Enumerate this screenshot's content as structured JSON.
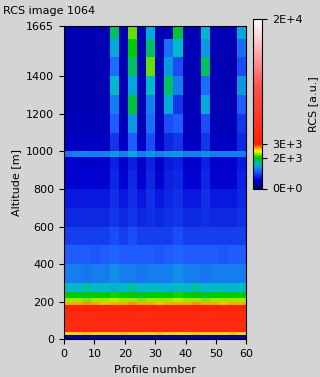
{
  "chart_data": {
    "type": "heatmap",
    "title": "RCS image 1064",
    "x_label": "Profile number",
    "y_label": "Altitude [m]",
    "x_edges": [
      0,
      3,
      6,
      9,
      12,
      15,
      18,
      21,
      24,
      27,
      30,
      33,
      36,
      39,
      42,
      45,
      48,
      51,
      54,
      57,
      60
    ],
    "y_edges": [
      0,
      25,
      40,
      50,
      100,
      150,
      180,
      200,
      220,
      250,
      300,
      400,
      500,
      600,
      700,
      800,
      900,
      970,
      1000,
      1100,
      1200,
      1300,
      1400,
      1500,
      1600,
      1665
    ],
    "cells": [
      [
        300,
        300,
        300,
        300,
        300,
        300,
        300,
        300,
        300,
        300,
        300,
        300,
        300,
        300,
        300,
        300,
        300,
        300,
        300,
        300
      ],
      [
        2600,
        2600,
        2650,
        2600,
        2600,
        2600,
        2650,
        2600,
        2600,
        2600,
        2650,
        2600,
        2600,
        2600,
        2650,
        2600,
        2600,
        2600,
        2650,
        2600
      ],
      [
        4500,
        4500,
        4400,
        4500,
        4500,
        4600,
        4500,
        4500,
        4400,
        4500,
        4500,
        4500,
        4600,
        4500,
        4500,
        4400,
        4500,
        4500,
        4500,
        4500
      ],
      [
        5000,
        5100,
        5000,
        5000,
        4900,
        5000,
        5100,
        5000,
        5000,
        5000,
        4900,
        5000,
        5000,
        5100,
        5000,
        5000,
        5000,
        4900,
        5000,
        5000
      ],
      [
        4500,
        4500,
        4600,
        4500,
        4500,
        4400,
        4500,
        4500,
        4600,
        4500,
        4500,
        4500,
        4400,
        4500,
        4500,
        4600,
        4500,
        4500,
        4500,
        4400
      ],
      [
        3500,
        3500,
        3400,
        3500,
        3600,
        3500,
        3500,
        3400,
        3500,
        3500,
        3600,
        3500,
        3500,
        3500,
        3400,
        3500,
        3500,
        3600,
        3500,
        3500
      ],
      [
        2700,
        2700,
        2750,
        2700,
        2650,
        2700,
        2700,
        2750,
        2700,
        2700,
        2650,
        2700,
        2700,
        2700,
        2750,
        2700,
        2700,
        2650,
        2700,
        2700
      ],
      [
        2300,
        2300,
        2250,
        2300,
        2300,
        2350,
        2300,
        2300,
        2250,
        2300,
        2300,
        2300,
        2350,
        2300,
        2300,
        2250,
        2300,
        2300,
        2300,
        2300
      ],
      [
        2000,
        2000,
        1950,
        2000,
        2000,
        2050,
        2000,
        2000,
        1950,
        2000,
        2000,
        2000,
        2050,
        2000,
        2000,
        1950,
        2000,
        2000,
        2000,
        2000
      ],
      [
        1600,
        1600,
        1650,
        1600,
        1600,
        1550,
        1600,
        1650,
        1600,
        1600,
        1600,
        1550,
        1600,
        1600,
        1650,
        1600,
        1600,
        1600,
        1550,
        1600
      ],
      [
        1300,
        1300,
        1250,
        1300,
        1300,
        1350,
        1300,
        1300,
        1250,
        1300,
        1300,
        1300,
        1350,
        1300,
        1300,
        1250,
        1300,
        1300,
        1300,
        1300
      ],
      [
        1100,
        1100,
        1100,
        1050,
        1100,
        1150,
        1100,
        1100,
        1100,
        1100,
        1050,
        1100,
        1150,
        1100,
        1100,
        1100,
        1100,
        1050,
        1100,
        1100
      ],
      [
        950,
        950,
        950,
        950,
        950,
        1000,
        950,
        1000,
        950,
        950,
        950,
        950,
        1000,
        950,
        950,
        950,
        950,
        950,
        950,
        950
      ],
      [
        800,
        800,
        800,
        800,
        800,
        900,
        800,
        900,
        800,
        850,
        800,
        850,
        900,
        800,
        800,
        850,
        800,
        800,
        800,
        850
      ],
      [
        700,
        700,
        700,
        700,
        700,
        850,
        700,
        850,
        700,
        850,
        700,
        800,
        850,
        700,
        700,
        850,
        700,
        700,
        700,
        800
      ],
      [
        600,
        600,
        600,
        600,
        600,
        800,
        600,
        800,
        600,
        800,
        600,
        750,
        800,
        600,
        600,
        800,
        600,
        600,
        600,
        750
      ],
      [
        550,
        550,
        550,
        550,
        550,
        750,
        550,
        750,
        550,
        750,
        550,
        700,
        750,
        550,
        550,
        750,
        550,
        550,
        550,
        700
      ],
      [
        1200,
        1300,
        1300,
        1250,
        1300,
        1400,
        1300,
        1500,
        1300,
        1400,
        1300,
        1350,
        1400,
        1300,
        1300,
        1350,
        1300,
        1250,
        1300,
        1300
      ],
      [
        500,
        500,
        500,
        500,
        500,
        900,
        500,
        1100,
        500,
        1000,
        500,
        800,
        900,
        500,
        500,
        900,
        500,
        500,
        500,
        800
      ],
      [
        450,
        450,
        450,
        450,
        450,
        1100,
        450,
        1400,
        450,
        1200,
        450,
        1000,
        1100,
        450,
        450,
        1000,
        450,
        450,
        450,
        900
      ],
      [
        400,
        400,
        400,
        400,
        400,
        1300,
        400,
        1900,
        400,
        1300,
        400,
        1500,
        900,
        400,
        400,
        1500,
        400,
        400,
        400,
        1100
      ],
      [
        400,
        400,
        400,
        400,
        400,
        1600,
        400,
        1500,
        400,
        1600,
        400,
        1800,
        1300,
        400,
        400,
        1200,
        400,
        400,
        400,
        1400
      ],
      [
        400,
        400,
        400,
        400,
        400,
        1200,
        400,
        1800,
        400,
        2200,
        400,
        1400,
        1000,
        400,
        400,
        1800,
        400,
        400,
        400,
        1000
      ],
      [
        400,
        400,
        400,
        400,
        400,
        1500,
        400,
        2000,
        400,
        1800,
        400,
        1200,
        1600,
        400,
        400,
        1400,
        400,
        400,
        400,
        1200
      ],
      [
        400,
        400,
        400,
        400,
        400,
        1800,
        400,
        2200,
        400,
        1500,
        400,
        400,
        1900,
        400,
        400,
        1600,
        400,
        400,
        400,
        1500
      ]
    ],
    "xlim": [
      0,
      60
    ],
    "xticks": [
      0,
      10,
      20,
      30,
      40,
      50,
      60
    ],
    "ylim": [
      0,
      1665
    ],
    "yticks": [
      0,
      200,
      400,
      600,
      800,
      1000,
      1200,
      1400,
      1665
    ],
    "colorbar_label": "RCS [a.u.]",
    "colorbar_range": [
      0,
      20000
    ],
    "colorbar_ticks": [
      {
        "value": 0,
        "label": "0E+0"
      },
      {
        "value": 2000,
        "label": "2E+3"
      },
      {
        "value": 3000,
        "label": "3E+3"
      },
      {
        "value": 20000,
        "label": "2E+4"
      }
    ]
  }
}
